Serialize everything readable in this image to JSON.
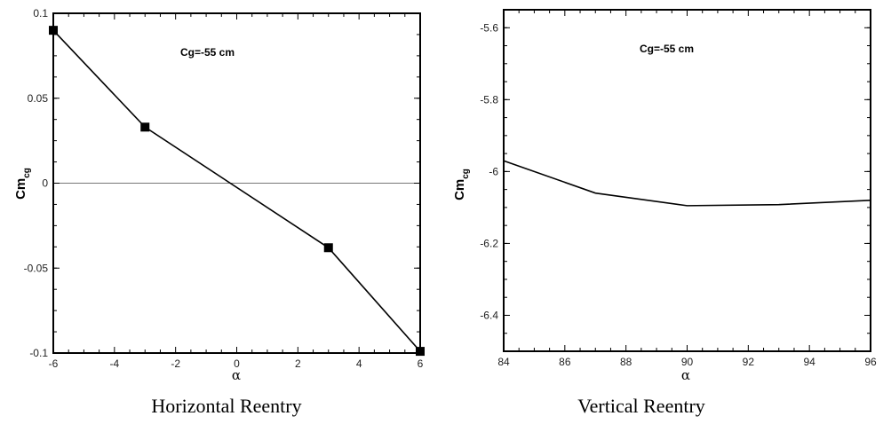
{
  "chart_data": [
    {
      "type": "line",
      "caption": "Horizontal Reentry",
      "annotation": "Cg=-55 cm",
      "ylabel": "Cm",
      "ylabel_sub": "cg",
      "xlabel": "α",
      "xlim": [
        -6,
        6
      ],
      "ylim": [
        -0.1,
        0.1
      ],
      "xticks": [
        -6,
        -4,
        -2,
        0,
        2,
        4,
        6
      ],
      "xtick_labels": [
        "-6",
        "-4",
        "-2",
        "0",
        "2",
        "4",
        "6"
      ],
      "yticks": [
        -0.1,
        -0.05,
        0,
        0.05,
        0.1
      ],
      "ytick_labels": [
        "-0.1",
        "-0.05",
        "0",
        "0.05",
        "0.1"
      ],
      "reference_line_y": 0,
      "markers": "square",
      "series": [
        {
          "x": [
            -6,
            -3,
            3,
            6
          ],
          "y": [
            0.09,
            0.033,
            -0.038,
            -0.099
          ]
        }
      ]
    },
    {
      "type": "line",
      "caption": "Vertical Reentry",
      "annotation": "Cg=-55 cm",
      "ylabel": "Cm",
      "ylabel_sub": "cg",
      "xlabel": "α",
      "xlim": [
        84,
        96
      ],
      "ylim": [
        -6.5,
        -5.55
      ],
      "xticks": [
        84,
        86,
        88,
        90,
        92,
        94,
        96
      ],
      "xtick_labels": [
        "84",
        "86",
        "88",
        "90",
        "92",
        "94",
        "96"
      ],
      "yticks": [
        -5.6,
        -5.8,
        -6,
        -6.2,
        -6.4
      ],
      "ytick_labels": [
        "-5.6",
        "-5.8",
        "-6",
        "-6.2",
        "-6.4"
      ],
      "markers": "none",
      "series": [
        {
          "x": [
            84,
            87,
            90,
            93,
            96
          ],
          "y": [
            -5.97,
            -6.06,
            -6.095,
            -6.092,
            -6.08
          ]
        }
      ]
    }
  ]
}
